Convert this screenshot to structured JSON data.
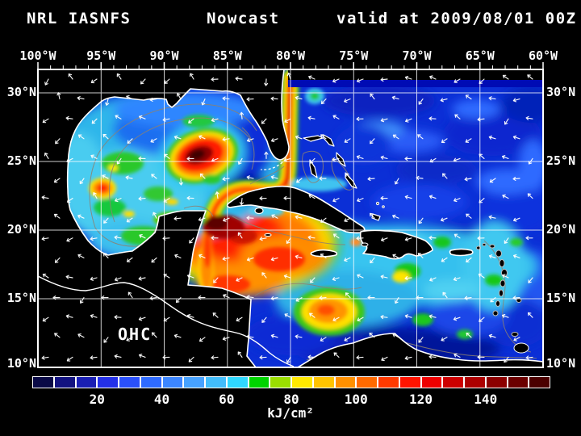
{
  "title": {
    "system": "NRL IASNFS",
    "run_type": "Nowcast",
    "valid": "valid at 2009/08/01 00Z"
  },
  "map": {
    "overlay_label": "OHC",
    "top_axis_labels": [
      "100°W",
      "95°W",
      "90°W",
      "85°W",
      "80°W",
      "75°W",
      "70°W",
      "65°W",
      "60°W"
    ],
    "left_axis_labels": [
      "30°N",
      "25°N",
      "20°N",
      "15°N",
      "10°N"
    ],
    "right_axis_labels": [
      "30°N",
      "25°N",
      "20°N",
      "15°N",
      "10°N"
    ]
  },
  "colorbar": {
    "tick_labels": [
      "20",
      "40",
      "60",
      "80",
      "100",
      "120",
      "140"
    ],
    "unit_label": "kJ/cm²",
    "cell_colors": [
      "#0a0a46",
      "#121280",
      "#1a1fb4",
      "#2430e8",
      "#2a50fa",
      "#2f6bff",
      "#3c86ff",
      "#47a2ff",
      "#42bdfb",
      "#2fd8ff",
      "#00d400",
      "#9ade00",
      "#ffe900",
      "#ffc400",
      "#ff9000",
      "#ff6a00",
      "#ff3a00",
      "#ff1400",
      "#ee0000",
      "#cd0000",
      "#ad0000",
      "#8c0000",
      "#6b0000",
      "#4b0000"
    ]
  },
  "chart_data": {
    "type": "heatmap",
    "title": "NRL IASNFS Nowcast valid at 2009/08/01 00Z",
    "variable_label": "OHC",
    "x_tick_labels": [
      "100°W",
      "95°W",
      "90°W",
      "85°W",
      "80°W",
      "75°W",
      "70°W",
      "65°W",
      "60°W"
    ],
    "y_tick_labels": [
      "30°N",
      "25°N",
      "20°N",
      "15°N",
      "10°N"
    ],
    "colorbar_scale": {
      "tick_values": [
        20,
        40,
        60,
        80,
        100,
        120,
        140
      ],
      "unit": "kJ/cm²",
      "n_cells": 24
    }
  }
}
